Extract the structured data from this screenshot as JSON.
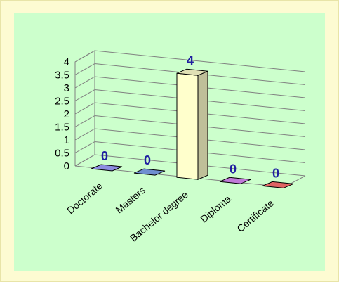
{
  "chart_data": {
    "type": "bar",
    "title": "",
    "xlabel": "",
    "ylabel": "",
    "categories": [
      "Doctorate",
      "Masters",
      "Bachelor degree",
      "Diploma",
      "Certificate"
    ],
    "values": [
      0,
      0,
      4,
      0,
      0
    ],
    "bar_colors": [
      "#8c8ce0",
      "#6f8fd0",
      "#ffffcc",
      "#c07ad8",
      "#e06464"
    ],
    "data_label_color": "#1f1fa0",
    "ylim": [
      0,
      4
    ],
    "yticks": [
      0,
      0.5,
      1,
      1.5,
      2,
      2.5,
      3,
      3.5,
      4
    ],
    "ytick_labels": [
      "0",
      "0.5",
      "1",
      "1.5",
      "2",
      "2.5",
      "3",
      "3.5",
      "4"
    ],
    "grid": true,
    "legend": false,
    "style": "3d"
  }
}
